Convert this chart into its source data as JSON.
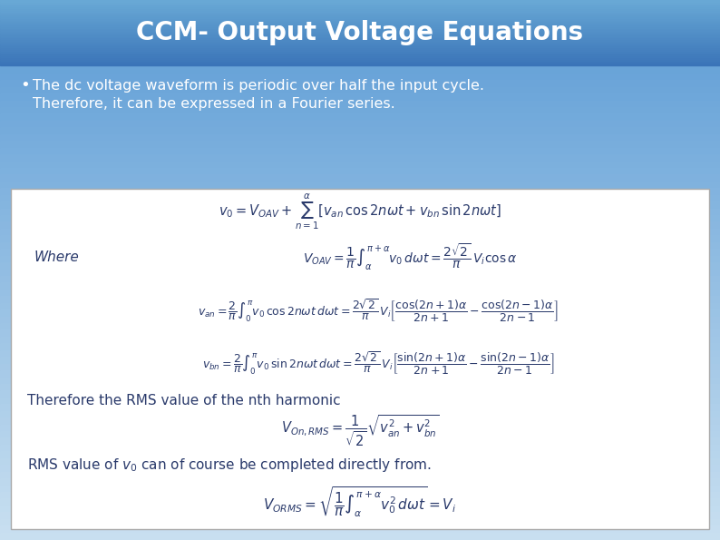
{
  "title": "CCM- Output Voltage Equations",
  "title_fontsize": 20,
  "bullet_text_line1": "The dc voltage waveform is periodic over half the input cycle.",
  "bullet_text_line2": "Therefore, it can be expressed in a Fourier series.",
  "eq1": "$v_0 = V_{OAV} + \\sum_{n=1}^{\\alpha}\\left[v_{an}\\,\\cos2n\\omega t + v_{bn}\\,\\sin2n\\omega t\\right]$",
  "eq2": "$V_{OAV} = \\dfrac{1}{\\pi}\\int_{\\alpha}^{\\pi+\\alpha} v_0\\, d\\omega t = \\dfrac{2\\sqrt{2}}{\\pi}\\,V_i\\cos\\alpha$",
  "eq3": "$v_{an} = \\dfrac{2}{\\pi}\\int_{0}^{\\pi} v_0\\,\\cos2n\\omega t\\, d\\omega t = \\dfrac{2\\sqrt{2}}{\\pi}\\,V_i\\left[\\dfrac{\\cos(2n+1)\\alpha}{2n+1} - \\dfrac{\\cos(2n-1)\\alpha}{2n-1}\\right]$",
  "eq4": "$v_{bn} = \\dfrac{2}{\\pi}\\int_{0}^{\\pi} v_0\\,\\sin2n\\omega t\\, d\\omega t = \\dfrac{2\\sqrt{2}}{\\pi}\\,V_i\\left[\\dfrac{\\sin(2n+1)\\alpha}{2n+1} - \\dfrac{\\sin(2n-1)\\alpha}{2n-1}\\right]$",
  "eq5": "$V_{On,RMS} = \\dfrac{1}{\\sqrt{2}}\\sqrt{v_{an}^2 + v_{bn}^2}$",
  "eq6": "$V_{ORMS} = \\sqrt{\\dfrac{1}{\\pi}\\int_{\\alpha}^{\\pi+\\alpha} v_0^2\\,d\\omega t} = V_i$",
  "text_therefore": "Therefore the RMS value of the nth harmonic",
  "text_rms": "RMS value of $v_0$ can of course be completed directly from.",
  "where_label": "Where",
  "eq_color": "#2a3a6b",
  "bullet_color": "#ffffff",
  "title_color": "#ffffff",
  "bg_top_color": "#5b9bd5",
  "bg_bottom_color": "#b8d4ea",
  "title_bar_top": "#4a86c0",
  "title_bar_bottom": "#6baad4",
  "white_box_color": "#f8fafc",
  "outer_bg_color": "#a8c8e0"
}
